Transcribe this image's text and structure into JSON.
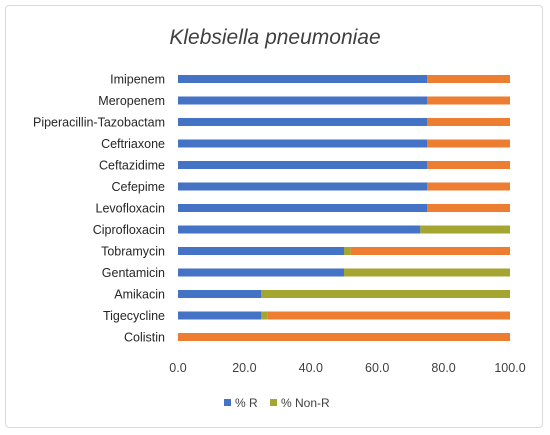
{
  "chart_data": {
    "type": "bar",
    "orientation": "horizontal",
    "stacked": true,
    "title": "Klebsiella pneumoniae",
    "categories": [
      "Imipenem",
      "Meropenem",
      "Piperacillin-Tazobactam",
      "Ceftriaxone",
      "Ceftazidime",
      "Cefepime",
      "Levofloxacin",
      "Ciprofloxacin",
      "Tobramycin",
      "Gentamicin",
      "Amikacin",
      "Tigecycline",
      "Colistin"
    ],
    "series": [
      {
        "name": "% R",
        "color": "#4472c4",
        "values": [
          75,
          75,
          75,
          75,
          75,
          75,
          75,
          73,
          50,
          50,
          25,
          25,
          0
        ]
      },
      {
        "name": "",
        "color": "#9e5fc7",
        "values": [
          0,
          0,
          0,
          0,
          0,
          0,
          0,
          0,
          0,
          0,
          0,
          0,
          0
        ]
      },
      {
        "name": "% Non-R",
        "color": "#a5a532",
        "values": [
          0,
          0,
          0,
          0,
          0,
          0,
          0,
          27,
          2,
          50,
          75,
          2,
          0
        ]
      },
      {
        "name": "",
        "color": "#ed7d31",
        "values": [
          25,
          25,
          25,
          25,
          25,
          25,
          25,
          0,
          48,
          0,
          0,
          73,
          100
        ]
      }
    ],
    "xlim": [
      0,
      100
    ],
    "xticks": [
      "0.0",
      "20.0",
      "40.0",
      "60.0",
      "80.0",
      "100.0"
    ],
    "xlabel": "",
    "ylabel": "",
    "legend_position": "bottom",
    "grid": false
  }
}
